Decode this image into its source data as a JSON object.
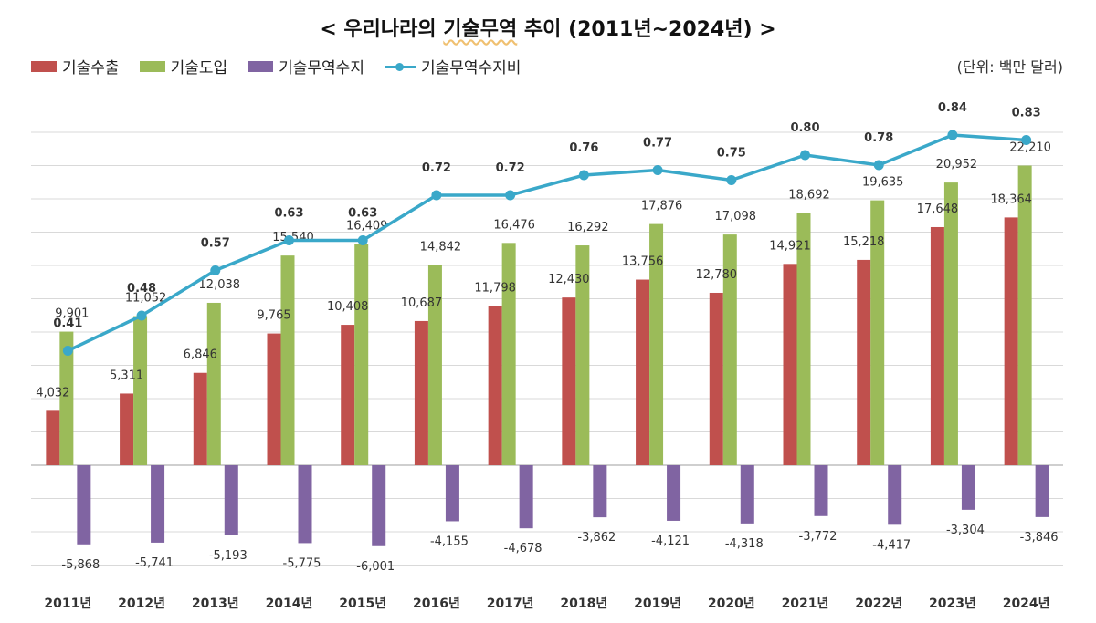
{
  "title_prefix": "<  우리나라의 ",
  "title_highlight": "기술무역",
  "title_suffix": " 추이  (2011년~2024년)  >",
  "unit": "(단위: 백만 달러)",
  "legend": [
    {
      "label": "기술수출",
      "color": "#c0504d",
      "kind": "bar"
    },
    {
      "label": "기술도입",
      "color": "#9bbb59",
      "kind": "bar"
    },
    {
      "label": "기술무역수지",
      "color": "#8064a2",
      "kind": "bar"
    },
    {
      "label": "기술무역수지비",
      "color": "#3aa8c9",
      "kind": "line"
    }
  ],
  "chart_data": {
    "type": "bar",
    "title": "< 우리나라의 기술무역 추이 (2011년~2024년) >",
    "categories": [
      "2011년",
      "2012년",
      "2013년",
      "2014년",
      "2015년",
      "2016년",
      "2017년",
      "2018년",
      "2019년",
      "2020년",
      "2021년",
      "2022년",
      "2023년",
      "2024년"
    ],
    "series": [
      {
        "name": "기술수출",
        "type": "bar",
        "color": "#c0504d",
        "values": [
          4032,
          5311,
          6846,
          9765,
          10408,
          10687,
          11798,
          12430,
          13756,
          12780,
          14921,
          15218,
          17648,
          18364
        ],
        "labels": [
          "4,032",
          "5,311",
          "6,846",
          "9,765",
          "10,408",
          "10,687",
          "11,798",
          "12,430",
          "13,756",
          "12,780",
          "14,921",
          "15,218",
          "17,648",
          "18,364"
        ]
      },
      {
        "name": "기술도입",
        "type": "bar",
        "color": "#9bbb59",
        "values": [
          9901,
          11052,
          12038,
          15540,
          16409,
          14842,
          16476,
          16292,
          17876,
          17098,
          18692,
          19635,
          20952,
          22210
        ],
        "labels": [
          "9,901",
          "11,052",
          "12,038",
          "15,540",
          "16,409",
          "14,842",
          "16,476",
          "16,292",
          "17,876",
          "17,098",
          "18,692",
          "19,635",
          "20,952",
          "22,210"
        ]
      },
      {
        "name": "기술무역수지",
        "type": "bar",
        "color": "#8064a2",
        "values": [
          -5868,
          -5741,
          -5193,
          -5775,
          -6001,
          -4155,
          -4678,
          -3862,
          -4121,
          -4318,
          -3772,
          -4417,
          -3304,
          -3846
        ],
        "labels": [
          "-5,868",
          "-5,741",
          "-5,193",
          "-5,775",
          "-6,001",
          "-4,155",
          "-4,678",
          "-3,862",
          "-4,121",
          "-4,318",
          "-3,772",
          "-4,417",
          "-3,304",
          "-3,846"
        ]
      },
      {
        "name": "기술무역수지비",
        "type": "line",
        "color": "#3aa8c9",
        "values": [
          0.41,
          0.48,
          0.57,
          0.63,
          0.63,
          0.72,
          0.72,
          0.76,
          0.77,
          0.75,
          0.8,
          0.78,
          0.84,
          0.83
        ],
        "labels": [
          "0.41",
          "0.48",
          "0.57",
          "0.63",
          "0.63",
          "0.72",
          "0.72",
          "0.76",
          "0.77",
          "0.75",
          "0.80",
          "0.78",
          "0.84",
          "0.83"
        ]
      }
    ],
    "ylim": [
      -8000,
      26000
    ],
    "ratio_axis_range": [
      0,
      1
    ],
    "grid": true,
    "legend_position": "top-left"
  }
}
